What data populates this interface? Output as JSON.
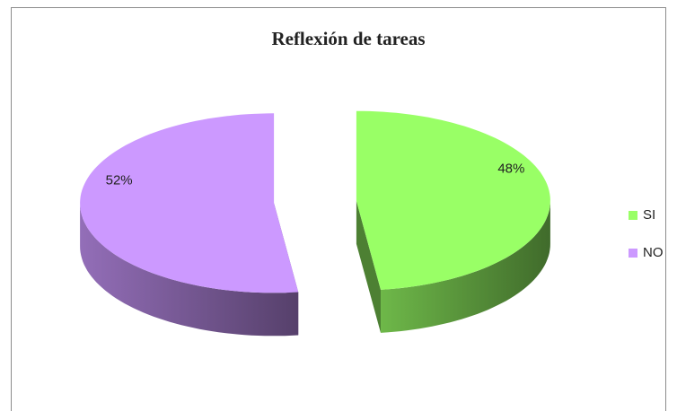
{
  "chart_data": {
    "type": "pie",
    "title": "Reflexión de tareas",
    "categories": [
      "SI",
      "NO"
    ],
    "values": [
      48,
      52
    ],
    "value_labels": [
      "48%",
      "52%"
    ],
    "colors": [
      "#99ff66",
      "#cc99ff"
    ],
    "legend": "right"
  }
}
